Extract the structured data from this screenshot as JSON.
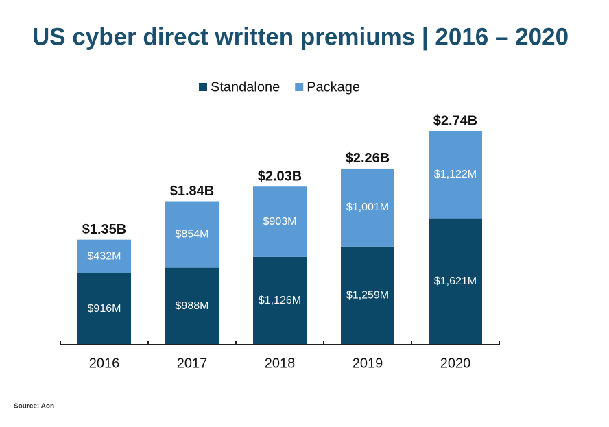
{
  "chart_data": {
    "type": "stacked_bar",
    "title": "US cyber direct written premiums | 2016 – 2020",
    "source": "Source: Aon",
    "categories": [
      "2016",
      "2017",
      "2018",
      "2019",
      "2020"
    ],
    "series": [
      {
        "name": "Standalone",
        "color": "#0b4868",
        "values": [
          916,
          988,
          1126,
          1259,
          1621
        ],
        "value_labels": [
          "$916M",
          "$988M",
          "$1,126M",
          "$1,259M",
          "$1,621M"
        ]
      },
      {
        "name": "Package",
        "color": "#5b9bd5",
        "values": [
          432,
          854,
          903,
          1001,
          1122
        ],
        "value_labels": [
          "$432M",
          "$854M",
          "$903M",
          "$1,001M",
          "$1,122M"
        ]
      }
    ],
    "totals": {
      "values": [
        1350,
        1840,
        2030,
        2260,
        2740
      ],
      "value_labels": [
        "$1.35B",
        "$1.84B",
        "$2.03B",
        "$2.26B",
        "$2.74B"
      ]
    },
    "legend": "top"
  }
}
